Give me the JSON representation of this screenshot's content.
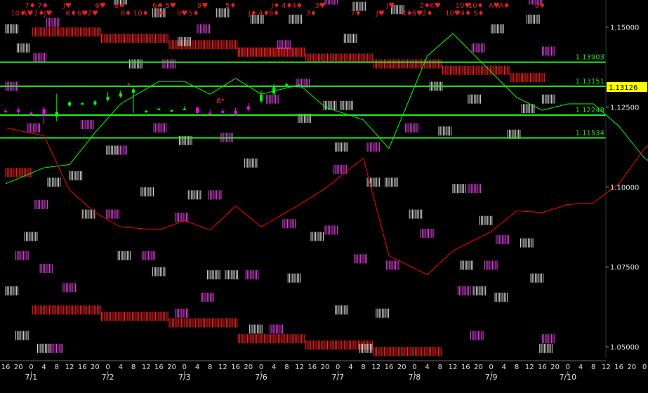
{
  "chart_data": {
    "type": "line",
    "background": "#000000",
    "x_axis": {
      "hour_ticks": [
        "16",
        "20",
        "0",
        "4",
        "8",
        "12",
        "16",
        "20",
        "0",
        "4",
        "8",
        "12",
        "16",
        "20",
        "0",
        "4",
        "8",
        "12",
        "16",
        "20",
        "0",
        "4",
        "8",
        "12",
        "16",
        "20",
        "0",
        "4",
        "8",
        "12",
        "16",
        "20",
        "0",
        "4",
        "8",
        "12",
        "16",
        "20",
        "0",
        "4",
        "8",
        "12",
        "16",
        "20",
        "0",
        "4",
        "8",
        "12",
        "16",
        "20",
        "0",
        "4",
        "8"
      ],
      "date_labels": [
        "7/1",
        "7/2",
        "7/3",
        "7/6",
        "7/7",
        "7/8",
        "7/9",
        "7/10"
      ]
    },
    "y_axis": {
      "ticks": [
        1.15,
        1.125,
        1.1,
        1.075,
        1.05
      ],
      "tick_labels": [
        "1.15000",
        "1.12500",
        "1.10000",
        "1.07500",
        "1.05000"
      ],
      "range": [
        1.0465,
        1.1585
      ]
    },
    "current_price": {
      "value": 1.13126,
      "label": "1.13126",
      "color": "#ffff00"
    },
    "horizontal_levels": [
      {
        "value": 1.13903,
        "label": "1.13903"
      },
      {
        "value": 1.13151,
        "label": "1.13151"
      },
      {
        "value": 1.12248,
        "label": "1.12248"
      },
      {
        "value": 1.11534,
        "label": "1.11534"
      }
    ],
    "series": [
      {
        "color": "#00ff00",
        "x": [
          0,
          3,
          5,
          7,
          9,
          12,
          14,
          16,
          18,
          20,
          23,
          25,
          28,
          30,
          33,
          35,
          38,
          40,
          42,
          44,
          46,
          48,
          50,
          52
        ],
        "y": [
          1.101,
          1.106,
          1.107,
          1.117,
          1.126,
          1.133,
          1.133,
          1.129,
          1.134,
          1.129,
          1.132,
          1.125,
          1.121,
          1.112,
          1.141,
          1.148,
          1.136,
          1.128,
          1.124,
          1.126,
          1.126,
          1.119,
          1.109,
          1.104
        ]
      },
      {
        "color": "#ff0000",
        "x": [
          0,
          3,
          5,
          7,
          9,
          12,
          14,
          16,
          18,
          20,
          23,
          25,
          28,
          30,
          33,
          35,
          38,
          40,
          42,
          44,
          46,
          48,
          50,
          52
        ],
        "y": [
          1.1185,
          1.116,
          1.099,
          1.092,
          1.0875,
          1.0865,
          1.0895,
          1.0865,
          1.094,
          1.0875,
          1.0945,
          1.0995,
          1.109,
          1.0785,
          1.0725,
          1.08,
          1.086,
          1.0925,
          1.092,
          1.0945,
          1.095,
          1.101,
          1.112,
          1.1185
        ]
      }
    ],
    "candles": [
      {
        "o": 1.1238,
        "c": 1.1238,
        "h": 1.1245,
        "l": 1.1232,
        "color": "#ff00ff"
      },
      {
        "o": 1.1235,
        "c": 1.1242,
        "h": 1.1248,
        "l": 1.1228,
        "color": "#ff00ff"
      },
      {
        "o": 1.1232,
        "c": 1.1228,
        "h": 1.1236,
        "l": 1.1222,
        "color": "#ff00ff"
      },
      {
        "o": 1.1244,
        "c": 1.1225,
        "h": 1.1252,
        "l": 1.1195,
        "color": "#ff00ff"
      },
      {
        "o": 1.122,
        "c": 1.1235,
        "h": 1.1292,
        "l": 1.1205,
        "color": "#00ff00"
      },
      {
        "o": 1.1255,
        "c": 1.1265,
        "h": 1.1268,
        "l": 1.125,
        "color": "#00ff00"
      },
      {
        "o": 1.1262,
        "c": 1.1262,
        "h": 1.1265,
        "l": 1.1258,
        "color": "#00ff00"
      },
      {
        "o": 1.1258,
        "c": 1.1268,
        "h": 1.1272,
        "l": 1.1255,
        "color": "#00ff00"
      },
      {
        "o": 1.1272,
        "c": 1.1282,
        "h": 1.1298,
        "l": 1.1268,
        "color": "#00ff00"
      },
      {
        "o": 1.1283,
        "c": 1.1293,
        "h": 1.1302,
        "l": 1.1278,
        "color": "#00ff00"
      },
      {
        "o": 1.1295,
        "c": 1.1305,
        "h": 1.1312,
        "l": 1.1232,
        "color": "#00ff00"
      },
      {
        "o": 1.1238,
        "c": 1.1238,
        "h": 1.1242,
        "l": 1.1232,
        "color": "#00ff00"
      },
      {
        "o": 1.1245,
        "c": 1.1245,
        "h": 1.1248,
        "l": 1.124,
        "color": "#00ff00"
      },
      {
        "o": 1.124,
        "c": 1.124,
        "h": 1.1242,
        "l": 1.1235,
        "color": "#00ff00"
      },
      {
        "o": 1.1245,
        "c": 1.1245,
        "h": 1.1252,
        "l": 1.124,
        "color": "#00ff00"
      },
      {
        "o": 1.1248,
        "c": 1.1232,
        "h": 1.1252,
        "l": 1.1228,
        "color": "#ff00ff"
      },
      {
        "o": 1.1232,
        "c": 1.1232,
        "h": 1.1242,
        "l": 1.1225,
        "color": "#ff00ff"
      },
      {
        "o": 1.1238,
        "c": 1.1232,
        "h": 1.1245,
        "l": 1.1225,
        "color": "#ff00ff"
      },
      {
        "o": 1.1228,
        "c": 1.1238,
        "h": 1.1248,
        "l": 1.1222,
        "color": "#ff00ff"
      },
      {
        "o": 1.1252,
        "c": 1.1242,
        "h": 1.1262,
        "l": 1.1238,
        "color": "#ff00ff"
      },
      {
        "o": 1.1268,
        "c": 1.1288,
        "h": 1.1302,
        "l": 1.1262,
        "color": "#00ff00"
      },
      {
        "o": 1.1292,
        "c": 1.1312,
        "h": 1.1322,
        "l": 1.1282,
        "color": "#00ff00"
      },
      {
        "o": 1.1318,
        "c": 1.1322,
        "h": 1.1325,
        "l": 1.1312,
        "color": "#00ff00"
      }
    ],
    "annotations": [
      {
        "text": "8*",
        "x": 16.5,
        "y": 1.1262,
        "color": "#ff3333"
      },
      {
        "text": "*",
        "x": 9.5,
        "y": 1.1312,
        "color": "#ff3333"
      },
      {
        "text": "*",
        "x": 18,
        "y": 1.1305,
        "color": "#ff3333"
      }
    ],
    "card_rows": [
      {
        "y": 1.157,
        "cards": [
          [
            1.5,
            "7♦"
          ],
          [
            2.5,
            "7♠"
          ],
          [
            4.5,
            "J♥"
          ],
          [
            7,
            "6♥"
          ],
          [
            8.5,
            "8♠"
          ],
          [
            11.5,
            "6♠"
          ],
          [
            12.5,
            "5♥"
          ],
          [
            15,
            "9♥"
          ],
          [
            17.2,
            "5♦"
          ],
          [
            20.8,
            "J♦"
          ],
          [
            21.6,
            "4♦"
          ],
          [
            22.4,
            "4♠"
          ],
          [
            24.2,
            "3♥"
          ],
          [
            29.8,
            "J♥"
          ],
          [
            32.4,
            "2♦"
          ],
          [
            33.2,
            "K♥"
          ],
          [
            35.2,
            "10♥"
          ],
          [
            36.2,
            "10♦"
          ],
          [
            37.8,
            "A♥"
          ],
          [
            38.6,
            "A♠"
          ],
          [
            41.4,
            "9♦"
          ]
        ]
      },
      {
        "y": 1.1545,
        "cards": [
          [
            0.4,
            "10♦"
          ],
          [
            1.3,
            "A♥"
          ],
          [
            2.2,
            "7♦"
          ],
          [
            3,
            "J♥"
          ],
          [
            4.7,
            "K♦"
          ],
          [
            5.6,
            "6♥"
          ],
          [
            6.4,
            "2♥"
          ],
          [
            9,
            "8♦"
          ],
          [
            10,
            "10♦"
          ],
          [
            11.6,
            "4♦"
          ],
          [
            13.4,
            "9♥"
          ],
          [
            14.3,
            "5♦"
          ],
          [
            19,
            "J♦"
          ],
          [
            19.8,
            "4♦"
          ],
          [
            20.6,
            "8♦"
          ],
          [
            23.5,
            "3♦"
          ],
          [
            27,
            "7♦"
          ],
          [
            29,
            "J♥"
          ],
          [
            31,
            "K♦"
          ],
          [
            31.8,
            "6♥"
          ],
          [
            32.6,
            "2♦"
          ],
          [
            34.4,
            "10♥"
          ],
          [
            35.6,
            "4♦"
          ],
          [
            36.6,
            "5♦"
          ]
        ]
      }
    ],
    "pattern_blocks": [
      {
        "x0": 2.1,
        "x1": 7.5,
        "y": 1.1485,
        "color": "#ff2020"
      },
      {
        "x0": 7.5,
        "x1": 12.8,
        "y": 1.1465,
        "color": "#ff2020"
      },
      {
        "x0": 12.8,
        "x1": 18.2,
        "y": 1.1445,
        "color": "#ff2020"
      },
      {
        "x0": 18.2,
        "x1": 23.5,
        "y": 1.1422,
        "color": "#ff2020"
      },
      {
        "x0": 23.5,
        "x1": 28.8,
        "y": 1.1403,
        "color": "#ff2020"
      },
      {
        "x0": 28.8,
        "x1": 34.2,
        "y": 1.1385,
        "color": "#ff2020"
      },
      {
        "x0": 34.2,
        "x1": 39.5,
        "y": 1.1365,
        "color": "#ff2020"
      },
      {
        "x0": 39.5,
        "x1": 42.2,
        "y": 1.1342,
        "color": "#ff2020"
      },
      {
        "x0": 2.1,
        "x1": 7.5,
        "y": 1.0615,
        "color": "#ff2020"
      },
      {
        "x0": 7.5,
        "x1": 12.8,
        "y": 1.0595,
        "color": "#ff2020"
      },
      {
        "x0": 12.8,
        "x1": 18.2,
        "y": 1.0575,
        "color": "#ff2020"
      },
      {
        "x0": 18.2,
        "x1": 23.5,
        "y": 1.0525,
        "color": "#ff2020"
      },
      {
        "x0": 23.5,
        "x1": 28.8,
        "y": 1.0505,
        "color": "#ff2020"
      },
      {
        "x0": 28.8,
        "x1": 34.2,
        "y": 1.0485,
        "color": "#ff2020"
      },
      {
        "x0": 0,
        "x1": 2.1,
        "y": 1.1045,
        "color": "#ff2020"
      },
      {
        "x0": 18.2,
        "x1": 23.5,
        "y": 1.1422,
        "color": "#ff2020"
      }
    ],
    "scatter_blocks": [
      [
        8.5,
        1.1585,
        "w"
      ],
      [
        25,
        1.1585,
        "m"
      ],
      [
        41,
        1.1585,
        "m"
      ],
      [
        27.2,
        1.1565,
        "w"
      ],
      [
        30.2,
        1.1555,
        "w"
      ],
      [
        16.5,
        1.1545,
        "w"
      ],
      [
        11.5,
        1.1545,
        "w"
      ],
      [
        19.2,
        1.1525,
        "w"
      ],
      [
        22.2,
        1.1525,
        "w"
      ],
      [
        40.8,
        1.1525,
        "w"
      ],
      [
        3.2,
        1.1515,
        "m"
      ],
      [
        0,
        1.1495,
        "w"
      ],
      [
        15,
        1.1495,
        "m"
      ],
      [
        38,
        1.1495,
        "w"
      ],
      [
        26.5,
        1.1465,
        "w"
      ],
      [
        13.5,
        1.1455,
        "w"
      ],
      [
        21.3,
        1.1445,
        "m"
      ],
      [
        0.9,
        1.1435,
        "w"
      ],
      [
        36.5,
        1.1435,
        "m"
      ],
      [
        42,
        1.1425,
        "m"
      ],
      [
        2.2,
        1.1405,
        "m"
      ],
      [
        9.7,
        1.1385,
        "w"
      ],
      [
        12.3,
        1.1385,
        "m"
      ],
      [
        22.8,
        1.1325,
        "m"
      ],
      [
        33.2,
        1.1315,
        "w"
      ],
      [
        0,
        1.1315,
        "m"
      ],
      [
        36.2,
        1.1275,
        "w"
      ],
      [
        42,
        1.1275,
        "w"
      ],
      [
        20.4,
        1.1275,
        "m"
      ],
      [
        24.9,
        1.1255,
        "w"
      ],
      [
        26.2,
        1.1255,
        "w"
      ],
      [
        40.4,
        1.1245,
        "w"
      ],
      [
        22.9,
        1.1215,
        "w"
      ],
      [
        5.9,
        1.1195,
        "m"
      ],
      [
        1.7,
        1.1185,
        "m"
      ],
      [
        11.6,
        1.1185,
        "m"
      ],
      [
        31.3,
        1.1185,
        "m"
      ],
      [
        33.9,
        1.1175,
        "w"
      ],
      [
        39.3,
        1.1165,
        "w"
      ],
      [
        16.8,
        1.1155,
        "m"
      ],
      [
        13.6,
        1.1145,
        "w"
      ],
      [
        8.5,
        1.1115,
        "m"
      ],
      [
        25.8,
        1.1125,
        "w"
      ],
      [
        28.3,
        1.1125,
        "m"
      ],
      [
        7.9,
        1.1115,
        "w"
      ],
      [
        18.7,
        1.1075,
        "w"
      ],
      [
        25.7,
        1.1055,
        "m"
      ],
      [
        5,
        1.1035,
        "w"
      ],
      [
        28.3,
        1.1015,
        "w"
      ],
      [
        29.7,
        1.1015,
        "w"
      ],
      [
        3.3,
        1.1015,
        "w"
      ],
      [
        35,
        1.0995,
        "w"
      ],
      [
        36.2,
        1.0995,
        "m"
      ],
      [
        10.6,
        1.0985,
        "w"
      ],
      [
        14.3,
        1.0975,
        "w"
      ],
      [
        15.9,
        1.0975,
        "m"
      ],
      [
        2.3,
        1.0945,
        "m"
      ],
      [
        6,
        1.0915,
        "w"
      ],
      [
        7.9,
        1.0915,
        "m"
      ],
      [
        31.6,
        1.0915,
        "w"
      ],
      [
        13.3,
        1.0905,
        "m"
      ],
      [
        37.1,
        1.0895,
        "w"
      ],
      [
        21.7,
        1.0885,
        "m"
      ],
      [
        25,
        1.0865,
        "m"
      ],
      [
        32.5,
        1.0855,
        "m"
      ],
      [
        1.5,
        1.0845,
        "w"
      ],
      [
        23.9,
        1.0845,
        "w"
      ],
      [
        38.4,
        1.0835,
        "m"
      ],
      [
        40.3,
        1.0825,
        "w"
      ],
      [
        8.8,
        1.0785,
        "w"
      ],
      [
        10.7,
        1.0785,
        "m"
      ],
      [
        27.3,
        1.0775,
        "m"
      ],
      [
        35.6,
        1.0755,
        "w"
      ],
      [
        0.8,
        1.0785,
        "m"
      ],
      [
        29.8,
        1.0755,
        "m"
      ],
      [
        2.7,
        1.0745,
        "m"
      ],
      [
        37.5,
        1.0755,
        "m"
      ],
      [
        11.5,
        1.0735,
        "w"
      ],
      [
        15.8,
        1.0725,
        "w"
      ],
      [
        17.2,
        1.0725,
        "w"
      ],
      [
        18.8,
        1.0725,
        "m"
      ],
      [
        22.1,
        1.0715,
        "w"
      ],
      [
        41.1,
        1.0715,
        "w"
      ],
      [
        4.5,
        1.0685,
        "m"
      ],
      [
        0,
        1.0675,
        "w"
      ],
      [
        35.4,
        1.0675,
        "m"
      ],
      [
        36.6,
        1.0675,
        "w"
      ],
      [
        15.3,
        1.0655,
        "m"
      ],
      [
        38.3,
        1.0655,
        "w"
      ],
      [
        25.8,
        1.0615,
        "w"
      ],
      [
        13.3,
        1.0605,
        "m"
      ],
      [
        29,
        1.0605,
        "w"
      ],
      [
        19.1,
        1.0555,
        "w"
      ],
      [
        20.7,
        1.0555,
        "m"
      ],
      [
        0.8,
        1.0535,
        "w"
      ],
      [
        36.4,
        1.0535,
        "m"
      ],
      [
        42,
        1.0525,
        "m"
      ],
      [
        2.5,
        1.0495,
        "w"
      ],
      [
        3.5,
        1.0495,
        "m"
      ],
      [
        27.7,
        1.0495,
        "w"
      ],
      [
        41.8,
        1.0495,
        "w"
      ]
    ]
  }
}
